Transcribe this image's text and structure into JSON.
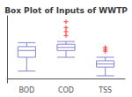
{
  "chart_data": {
    "type": "box",
    "title": "Box Plot of Inputs of WWTP",
    "categories": [
      "BOD",
      "COD",
      "TSS"
    ],
    "series": [
      {
        "type": "boxplot",
        "color": "#8888cc",
        "whislo": [
          0.2,
          0.55,
          0.08
        ],
        "q1": [
          0.55,
          0.72,
          0.3
        ],
        "med": [
          0.72,
          0.8,
          0.38
        ],
        "q3": [
          0.82,
          0.88,
          0.46
        ],
        "whishi": [
          0.92,
          0.95,
          0.55
        ]
      },
      {
        "type": "scatter",
        "color": "#ff3333",
        "marker": "plus",
        "values": [
          [],
          [
            1.1,
            1.2,
            1.3,
            1.45
          ],
          [
            0.7,
            0.75,
            0.8
          ]
        ]
      }
    ],
    "ylim": [
      -0.1,
      1.6
    ],
    "tick_labels": "x",
    "grid": false
  }
}
